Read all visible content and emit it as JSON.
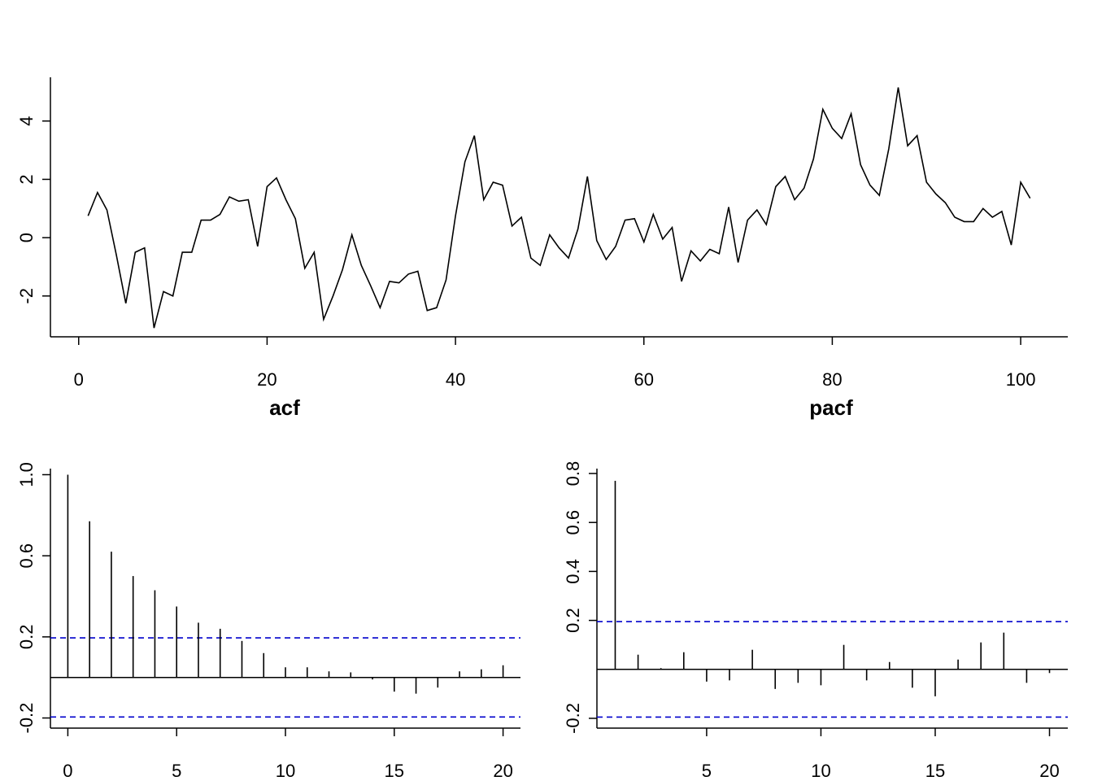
{
  "chart_data": [
    {
      "type": "line",
      "title": "",
      "xlabel": "",
      "ylabel": "",
      "xlim": [
        -3,
        105
      ],
      "ylim": [
        -3.4,
        5.5
      ],
      "x_ticks": [
        0,
        20,
        40,
        60,
        80,
        100
      ],
      "y_ticks": [
        -2,
        0,
        2,
        4
      ],
      "x_tick_labels": [
        "0",
        "20",
        "40",
        "60",
        "80",
        "100"
      ],
      "y_tick_labels": [
        "-2",
        "0",
        "2",
        "4"
      ],
      "series": [
        {
          "color": "#000000",
          "x": [
            1,
            2,
            3,
            4,
            5,
            6,
            7,
            8,
            9,
            10,
            11,
            12,
            13,
            14,
            15,
            16,
            17,
            18,
            19,
            20,
            21,
            22,
            23,
            24,
            25,
            26,
            27,
            28,
            29,
            30,
            31,
            32,
            33,
            34,
            35,
            36,
            37,
            38,
            39,
            40,
            41,
            42,
            43,
            44,
            45,
            46,
            47,
            48,
            49,
            50,
            51,
            52,
            53,
            54,
            55,
            56,
            57,
            58,
            59,
            60,
            61,
            62,
            63,
            64,
            65,
            66,
            67,
            68,
            69,
            70,
            71,
            72,
            73,
            74,
            75,
            76,
            77,
            78,
            79,
            80,
            81,
            82,
            83,
            84,
            85,
            86,
            87,
            88,
            89,
            90,
            91,
            92,
            93,
            94,
            95,
            96,
            97,
            98,
            99,
            100,
            101
          ],
          "values": [
            0.75,
            1.55,
            0.95,
            -0.6,
            -2.25,
            -0.5,
            -0.35,
            -3.1,
            -1.85,
            -2.0,
            -0.5,
            -0.5,
            0.6,
            0.6,
            0.8,
            1.4,
            1.25,
            1.3,
            -0.3,
            1.75,
            2.05,
            1.3,
            0.65,
            -1.05,
            -0.5,
            -2.8,
            -2.0,
            -1.1,
            0.1,
            -0.95,
            -1.65,
            -2.4,
            -1.5,
            -1.55,
            -1.25,
            -1.15,
            -2.5,
            -2.4,
            -1.45,
            0.75,
            2.6,
            3.5,
            1.3,
            1.9,
            1.8,
            0.4,
            0.7,
            -0.7,
            -0.95,
            0.1,
            -0.35,
            -0.7,
            0.3,
            2.1,
            -0.1,
            -0.75,
            -0.3,
            0.6,
            0.65,
            -0.15,
            0.8,
            -0.05,
            0.35,
            -1.5,
            -0.45,
            -0.8,
            -0.4,
            -0.55,
            1.05,
            -0.85,
            0.6,
            0.95,
            0.45,
            1.75,
            2.1,
            1.3,
            1.7,
            2.7,
            4.4,
            3.75,
            3.4,
            4.25,
            2.5,
            1.8,
            1.45,
            3.05,
            5.15,
            3.15,
            3.5,
            1.9,
            1.5,
            1.2,
            0.7,
            0.55,
            0.55,
            1.0,
            0.7,
            0.9,
            -0.25,
            1.9,
            1.35
          ]
        }
      ]
    },
    {
      "type": "bar",
      "title": "acf",
      "xlabel": "",
      "ylabel": "",
      "xlim": [
        -0.8,
        20.8
      ],
      "ylim": [
        -0.25,
        1.03
      ],
      "x_ticks": [
        0,
        5,
        10,
        15,
        20
      ],
      "y_ticks": [
        -0.2,
        0.2,
        0.6,
        1.0
      ],
      "x_tick_labels": [
        "0",
        "5",
        "10",
        "15",
        "20"
      ],
      "y_tick_labels": [
        "-0.2",
        "0.2",
        "0.6",
        "1.0"
      ],
      "categories": [
        0,
        1,
        2,
        3,
        4,
        5,
        6,
        7,
        8,
        9,
        10,
        11,
        12,
        13,
        14,
        15,
        16,
        17,
        18,
        19,
        20
      ],
      "values": [
        1.0,
        0.77,
        0.62,
        0.5,
        0.43,
        0.35,
        0.27,
        0.24,
        0.18,
        0.12,
        0.05,
        0.05,
        0.03,
        0.025,
        -0.01,
        -0.07,
        -0.08,
        -0.05,
        0.03,
        0.04,
        0.06
      ],
      "confidence_band": 0.195,
      "band_color": "#0000cc"
    },
    {
      "type": "bar",
      "title": "pacf",
      "xlabel": "",
      "ylabel": "",
      "xlim": [
        0.2,
        20.8
      ],
      "ylim": [
        -0.24,
        0.82
      ],
      "x_ticks": [
        5,
        10,
        15,
        20
      ],
      "y_ticks": [
        -0.2,
        0.2,
        0.4,
        0.6,
        0.8
      ],
      "x_tick_labels": [
        "5",
        "10",
        "15",
        "20"
      ],
      "y_tick_labels": [
        "-0.2",
        "0.2",
        "0.4",
        "0.6",
        "0.8"
      ],
      "categories": [
        1,
        2,
        3,
        4,
        5,
        6,
        7,
        8,
        9,
        10,
        11,
        12,
        13,
        14,
        15,
        16,
        17,
        18,
        19,
        20
      ],
      "values": [
        0.77,
        0.06,
        0.005,
        0.07,
        -0.05,
        -0.045,
        0.08,
        -0.08,
        -0.055,
        -0.065,
        0.1,
        -0.045,
        0.03,
        -0.075,
        -0.11,
        0.04,
        0.11,
        0.15,
        -0.055,
        -0.015
      ],
      "confidence_band": 0.195,
      "band_color": "#0000cc"
    }
  ]
}
